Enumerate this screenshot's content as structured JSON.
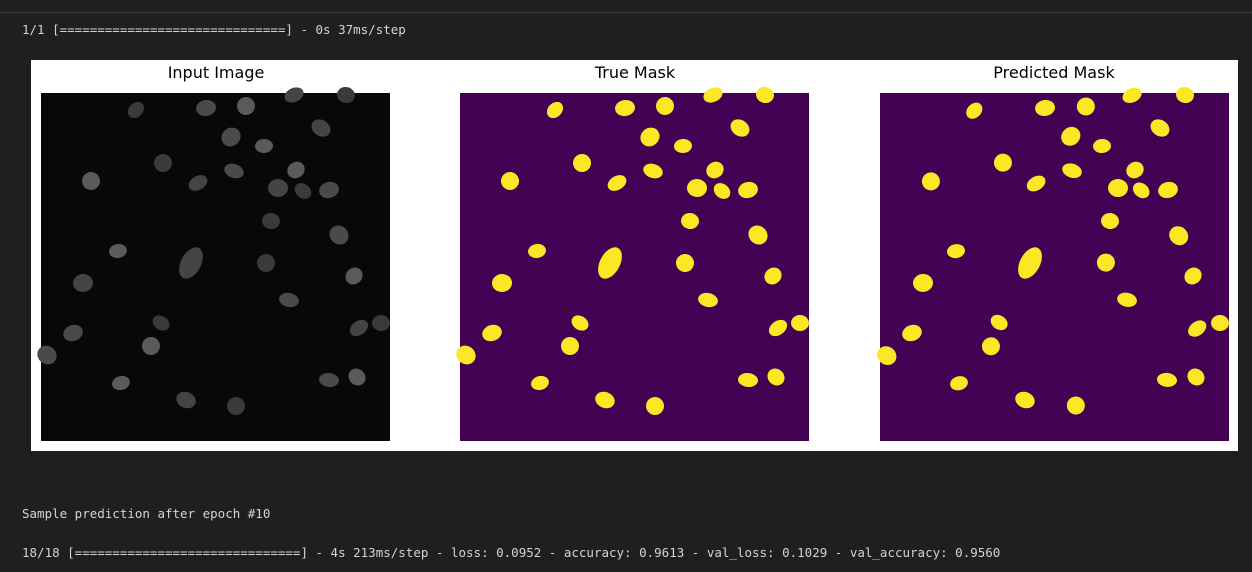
{
  "output": {
    "progress_line": "1/1 [==============================] - 0s 37ms/step",
    "figure": {
      "titles": [
        "Input Image",
        "True Mask",
        "Predicted Mask"
      ]
    },
    "message": "Sample prediction after epoch #10",
    "training_line": "18/18 [==============================] - 4s 213ms/step - loss: 0.0952 - accuracy: 0.9613 - val_loss: 0.1029 - val_accuracy: 0.9560"
  }
}
